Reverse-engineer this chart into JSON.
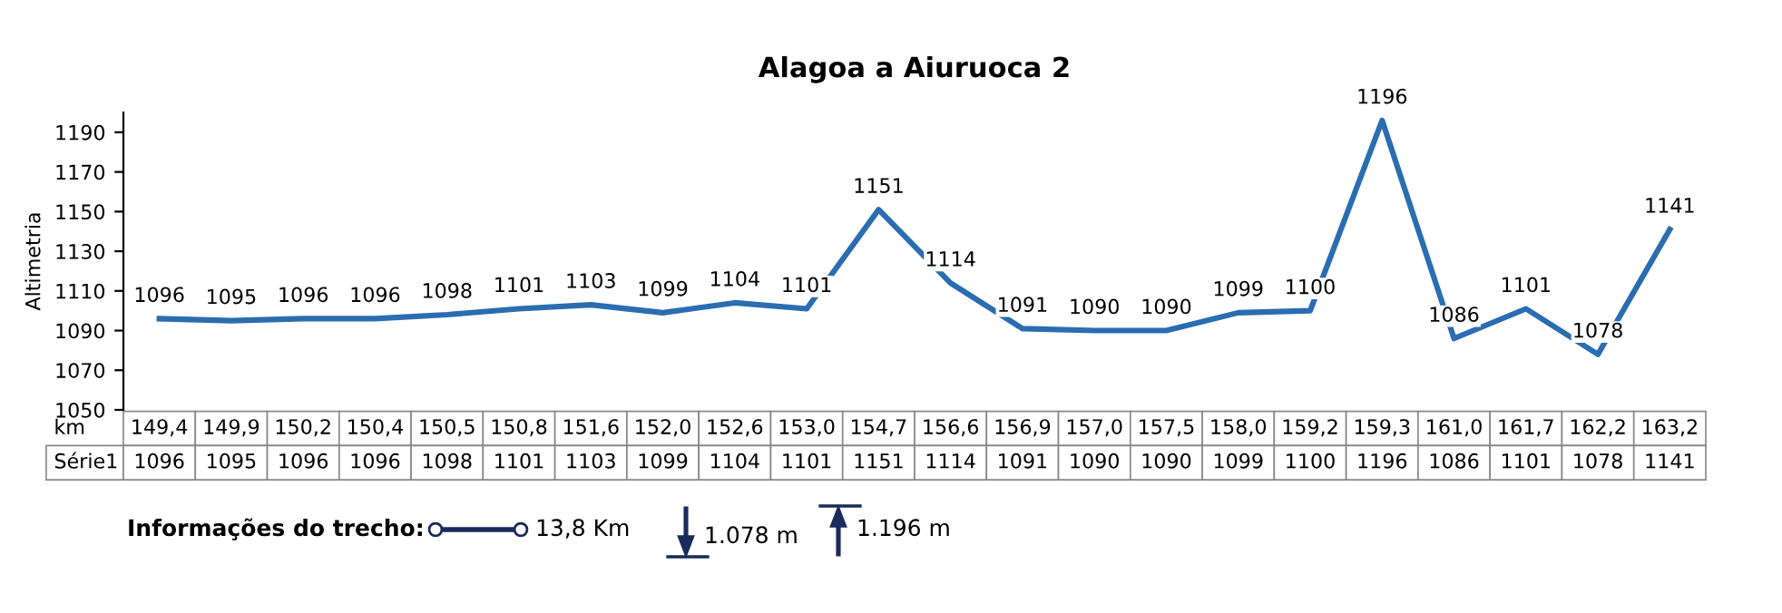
{
  "chart_data": {
    "type": "line",
    "title": "Alagoa a Aiuruoca 2",
    "xlabel": "km",
    "ylabel": "Altimetria",
    "categories": [
      "149,4",
      "149,9",
      "150,2",
      "150,4",
      "150,5",
      "150,8",
      "151,6",
      "152,0",
      "152,6",
      "153,0",
      "154,7",
      "156,6",
      "156,9",
      "157,0",
      "157,5",
      "158,0",
      "159,2",
      "159,3",
      "161,0",
      "161,7",
      "162,2",
      "163,2"
    ],
    "series": [
      {
        "name": "Série1",
        "color": "#2a6db0",
        "values": [
          1096,
          1095,
          1096,
          1096,
          1098,
          1101,
          1103,
          1099,
          1104,
          1101,
          1151,
          1114,
          1091,
          1090,
          1090,
          1099,
          1100,
          1196,
          1086,
          1101,
          1078,
          1141
        ]
      }
    ],
    "ylim": [
      1050,
      1200
    ],
    "yticks": [
      1050,
      1070,
      1090,
      1110,
      1130,
      1150,
      1170,
      1190
    ],
    "data_labels": true,
    "grid": false,
    "legend": false,
    "marker": "none",
    "line_style": "solid",
    "annotations": [
      "Informações do trecho:",
      "13,8 Km",
      "1.078 m",
      "1.196 m",
      {
        "text": "1096",
        "x": "149,4",
        "y": 1096
      },
      {
        "text": "1095",
        "x": "149,9",
        "y": 1095
      },
      {
        "text": "1096",
        "x": "150,2",
        "y": 1096
      },
      {
        "text": "1096",
        "x": "150,4",
        "y": 1096
      },
      {
        "text": "1098",
        "x": "150,5",
        "y": 1098
      },
      {
        "text": "1101",
        "x": "150,8",
        "y": 1101
      },
      {
        "text": "1103",
        "x": "151,6",
        "y": 1103
      },
      {
        "text": "1099",
        "x": "152,0",
        "y": 1099
      },
      {
        "text": "1104",
        "x": "152,6",
        "y": 1104
      },
      {
        "text": "1101",
        "x": "153,0",
        "y": 1101
      },
      {
        "text": "1151",
        "x": "154,7",
        "y": 1151
      },
      {
        "text": "1114",
        "x": "156,6",
        "y": 1114
      },
      {
        "text": "1091",
        "x": "156,9",
        "y": 1091
      },
      {
        "text": "1090",
        "x": "157,0",
        "y": 1090
      },
      {
        "text": "1090",
        "x": "157,5",
        "y": 1090
      },
      {
        "text": "1099",
        "x": "158,0",
        "y": 1099
      },
      {
        "text": "1100",
        "x": "159,2",
        "y": 1100
      },
      {
        "text": "1196",
        "x": "159,3",
        "y": 1196
      },
      {
        "text": "1086",
        "x": "161,0",
        "y": 1086
      },
      {
        "text": "1101",
        "x": "161,7",
        "y": 1101
      },
      {
        "text": "1078",
        "x": "162,2",
        "y": 1078
      },
      {
        "text": "1141",
        "x": "163,2",
        "y": 1141
      }
    ]
  }
}
